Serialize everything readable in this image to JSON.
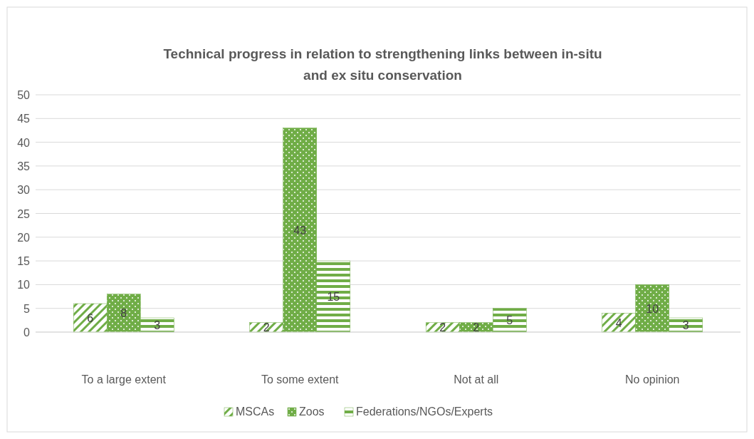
{
  "chart_data": {
    "type": "bar",
    "title": "Technical progress in relation to strengthening links between in-situ and ex situ conservation",
    "categories": [
      "To a large extent",
      "To some extent",
      "Not at all",
      "No opinion"
    ],
    "series": [
      {
        "name": "MSCAs",
        "color": "#70ad47",
        "values": [
          6,
          2,
          2,
          4
        ]
      },
      {
        "name": "Zoos",
        "color": "#70ad47",
        "values": [
          8,
          43,
          2,
          10
        ]
      },
      {
        "name": "Federations/NGOs/Experts",
        "color": "#70ad47",
        "values": [
          3,
          15,
          5,
          3
        ]
      }
    ],
    "ylim": [
      0,
      50
    ],
    "yticks": [
      0,
      5,
      10,
      15,
      20,
      25,
      30,
      35,
      40,
      45,
      50
    ],
    "grid": "y",
    "legend": "bottom",
    "data_labels": true
  }
}
